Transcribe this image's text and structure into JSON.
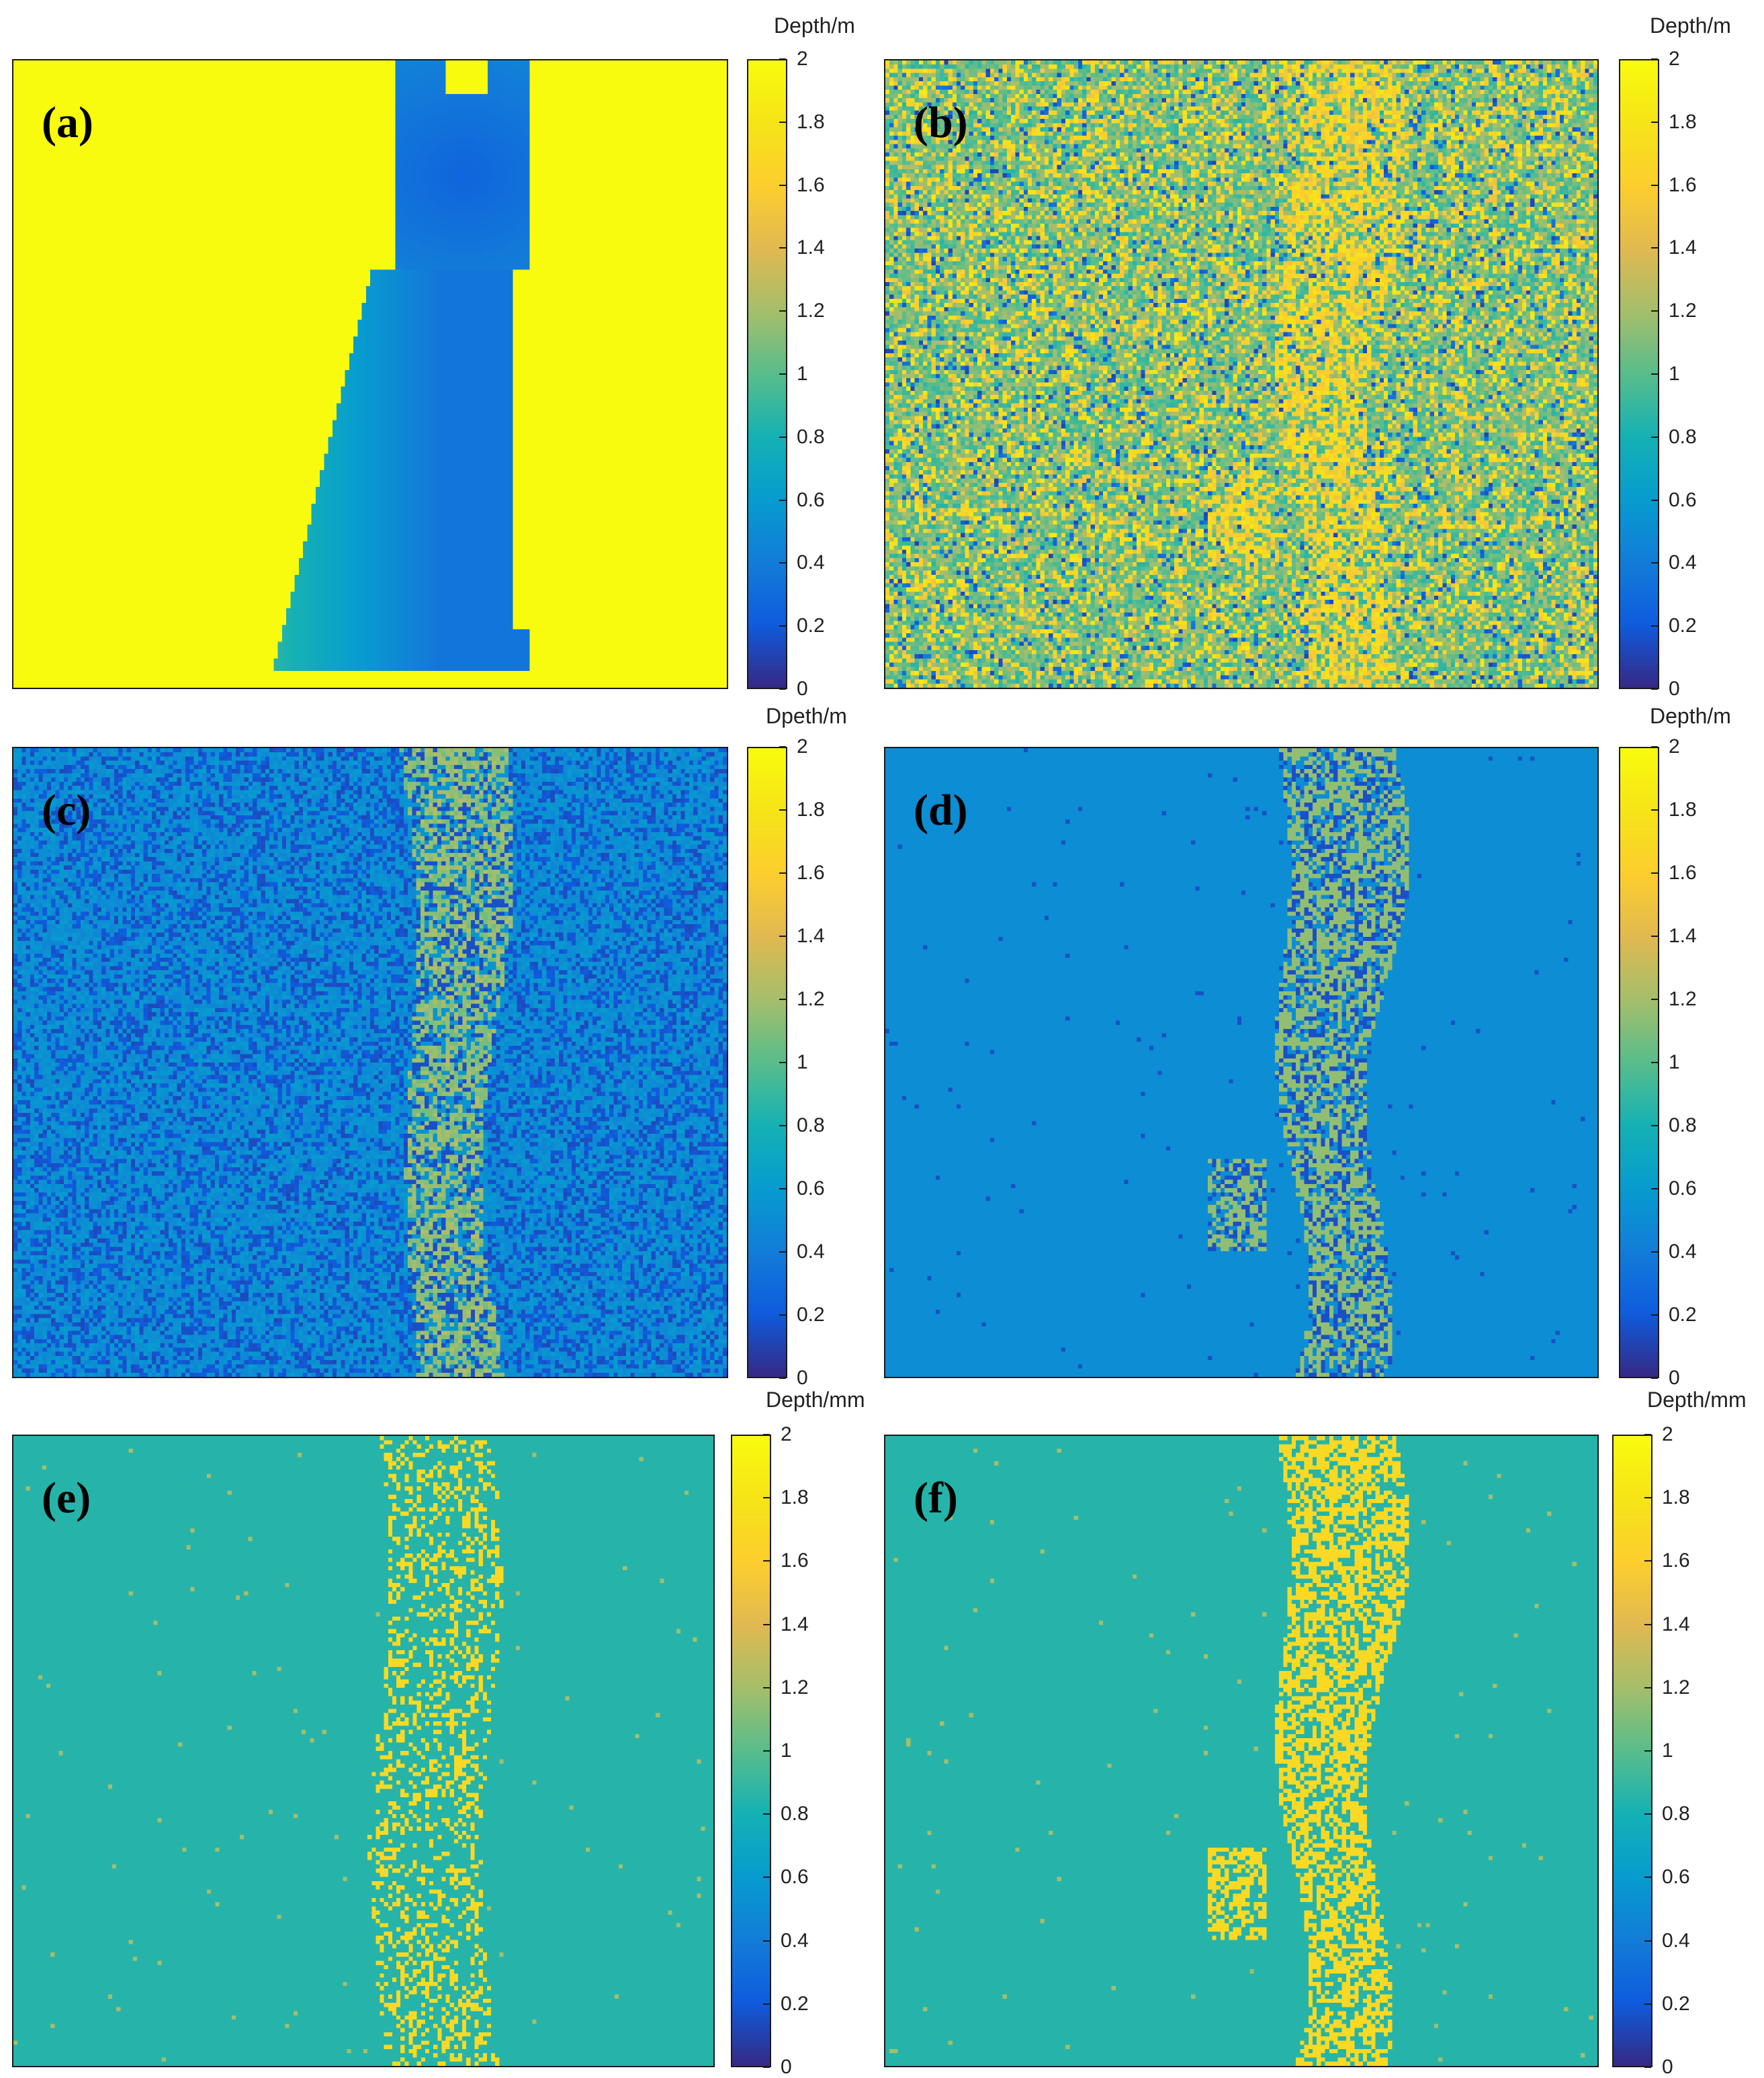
{
  "chart_data": [
    {
      "type": "heatmap",
      "panel": "(a)",
      "colorbar_label": "Depth/m",
      "clim": [
        0,
        2
      ],
      "colorbar_ticks": [
        "0",
        "0.2",
        "0.4",
        "0.6",
        "0.8",
        "1",
        "1.2",
        "1.4",
        "1.6",
        "1.8",
        "2"
      ],
      "scene": "cat",
      "background_value": 2.0,
      "object_value": 0.45,
      "noise": "smooth"
    },
    {
      "type": "heatmap",
      "panel": "(b)",
      "colorbar_label": "Depth/m",
      "clim": [
        0,
        2
      ],
      "colorbar_ticks": [
        "0",
        "0.2",
        "0.4",
        "0.6",
        "0.8",
        "1",
        "1.2",
        "1.4",
        "1.6",
        "1.8",
        "2"
      ],
      "scene": "noisy",
      "background_value": 1.0,
      "object_value": 1.6,
      "noise": "heavy"
    },
    {
      "type": "heatmap",
      "panel": "(c)",
      "colorbar_label": "Dpeth/m",
      "clim": [
        0,
        2
      ],
      "colorbar_ticks": [
        "0",
        "0.2",
        "0.4",
        "0.6",
        "0.8",
        "1",
        "1.2",
        "1.4",
        "1.6",
        "1.8",
        "2"
      ],
      "scene": "noisy",
      "background_value": 0.45,
      "object_value": 1.15,
      "noise": "medium"
    },
    {
      "type": "heatmap",
      "panel": "(d)",
      "colorbar_label": "Depth/m",
      "clim": [
        0,
        2
      ],
      "colorbar_ticks": [
        "0",
        "0.2",
        "0.4",
        "0.6",
        "0.8",
        "1",
        "1.2",
        "1.4",
        "1.6",
        "1.8",
        "2"
      ],
      "scene": "clean",
      "background_value": 0.5,
      "object_value": 1.15,
      "noise": "light"
    },
    {
      "type": "heatmap",
      "panel": "(e)",
      "colorbar_label": "Depth/mm",
      "clim": [
        0,
        2
      ],
      "colorbar_ticks": [
        "0",
        "0.2",
        "0.4",
        "0.6",
        "0.8",
        "1",
        "1.2",
        "1.4",
        "1.6",
        "1.8",
        "2"
      ],
      "scene": "sparse",
      "background_value": 0.85,
      "object_value": 1.7,
      "noise": "sparse"
    },
    {
      "type": "heatmap",
      "panel": "(f)",
      "colorbar_label": "Depth/mm",
      "clim": [
        0,
        2
      ],
      "colorbar_ticks": [
        "0",
        "0.2",
        "0.4",
        "0.6",
        "0.8",
        "1",
        "1.2",
        "1.4",
        "1.6",
        "1.8",
        "2"
      ],
      "scene": "clean",
      "background_value": 0.85,
      "object_value": 1.7,
      "noise": "light"
    }
  ],
  "colormap": "parula"
}
